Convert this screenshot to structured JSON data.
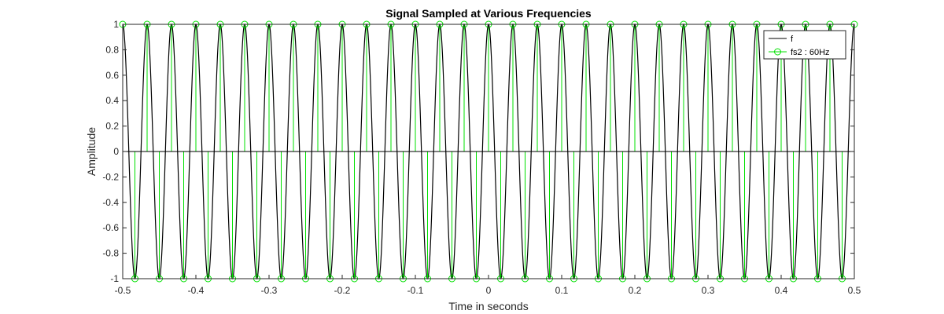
{
  "chart_data": {
    "type": "line",
    "title": "Signal Sampled at Various Frequencies",
    "xlabel": "Time in seconds",
    "ylabel": "Amplitude",
    "xlim": [
      -0.5,
      0.5
    ],
    "ylim": [
      -1,
      1
    ],
    "xticks": [
      "-0.5",
      "-0.4",
      "-0.3",
      "-0.2",
      "-0.1",
      "0",
      "0.1",
      "0.2",
      "0.3",
      "0.4",
      "0.5"
    ],
    "yticks": [
      "-1",
      "-0.8",
      "-0.6",
      "-0.4",
      "-0.2",
      "0",
      "0.2",
      "0.4",
      "0.6",
      "0.8",
      "1"
    ],
    "grid": false,
    "legend_position": "top-right",
    "series": [
      {
        "name": "f",
        "kind": "line",
        "color": "#000000",
        "signal": "cos(2*pi*30*t)",
        "frequency_hz": 30
      },
      {
        "name": "fs2 : 60Hz",
        "kind": "stem",
        "color": "#00e000",
        "marker": "circle",
        "sample_rate_hz": 60,
        "signal": "cos(2*pi*30*t)"
      }
    ]
  }
}
